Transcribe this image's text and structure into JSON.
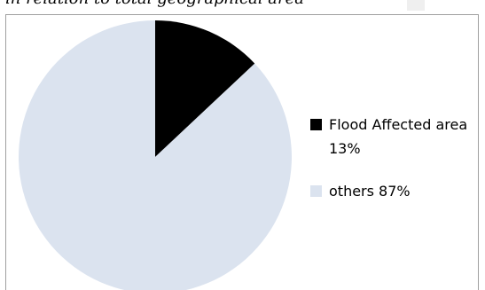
{
  "caption": "in relation to total geographical area",
  "colors": {
    "flood": "#000000",
    "others": "#dbe3ef",
    "frame": "#a0a0a0"
  },
  "chart_data": {
    "type": "pie",
    "title": "",
    "start_angle_deg": 0,
    "direction": "clockwise",
    "legend_position": "right",
    "slices": [
      {
        "label": "Flood Affected area 13%",
        "value": 13,
        "color": "#000000"
      },
      {
        "label": "others 87%",
        "value": 87,
        "color": "#dbe3ef"
      }
    ]
  }
}
